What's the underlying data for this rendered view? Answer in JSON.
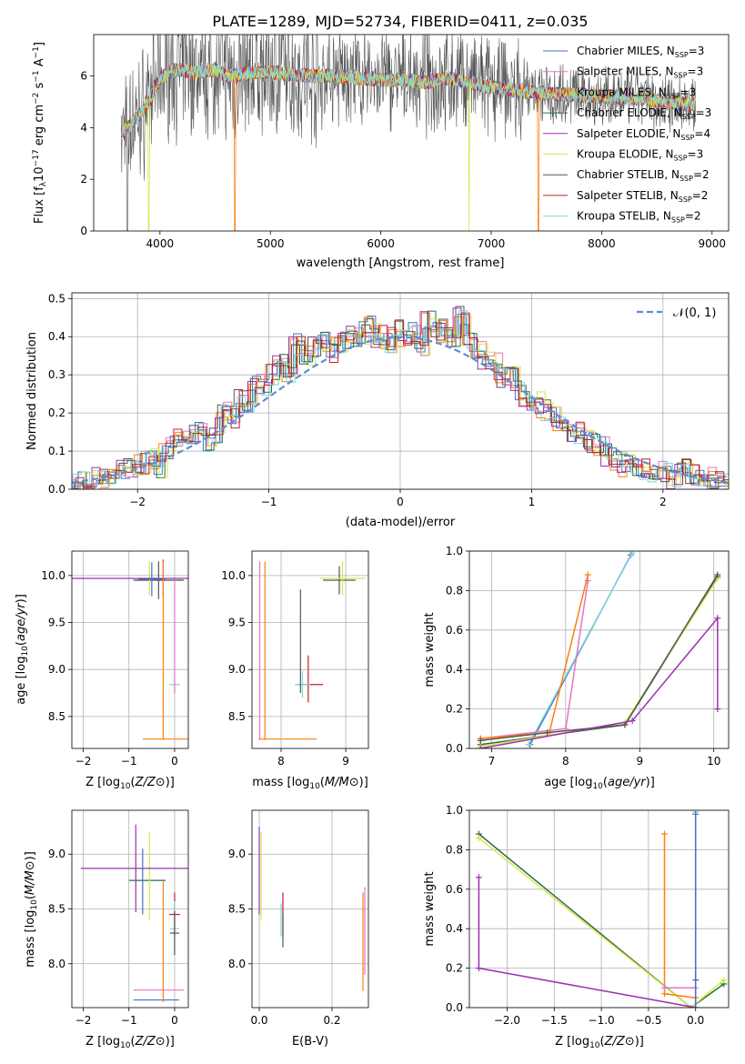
{
  "figure_title": "PLATE=1289, MJD=52734, FIBERID=0411, z=0.035",
  "models": [
    {
      "label": "Chabrier MILES, N",
      "nssp": "3",
      "color": "#4472c4"
    },
    {
      "label": "Salpeter MILES, N",
      "nssp": "3",
      "color": "#e377c2"
    },
    {
      "label": "Kroupa MILES, N",
      "nssp": "3",
      "color": "#ff7f0e"
    },
    {
      "label": "Chabrier ELODIE, N",
      "nssp": "3",
      "color": "#2f6b45"
    },
    {
      "label": "Salpeter ELODIE, N",
      "nssp": "4",
      "color": "#9b30b3"
    },
    {
      "label": "Kroupa ELODIE, N",
      "nssp": "3",
      "color": "#d4e84a"
    },
    {
      "label": "Chabrier STELIB, N",
      "nssp": "2",
      "color": "#555555"
    },
    {
      "label": "Salpeter STELIB, N",
      "nssp": "2",
      "color": "#c0202b"
    },
    {
      "label": "Kroupa STELIB, N",
      "nssp": "2",
      "color": "#7fd6dc"
    }
  ],
  "nssp_sub": "SSP",
  "chart_data": [
    {
      "id": "spectrum",
      "type": "line",
      "xlabel": "wavelength [Angstrom, rest frame]",
      "ylabel_parts": [
        "Flux [f",
        "λ",
        "10",
        "−17",
        " erg cm",
        "−2",
        " s",
        "−1",
        " A",
        "−1",
        "]"
      ],
      "xlim": [
        3400,
        9150
      ],
      "ylim": [
        0,
        7.6
      ],
      "xticks": [
        4000,
        5000,
        6000,
        7000,
        8000,
        9000
      ],
      "yticks": [
        0,
        2,
        4,
        6
      ],
      "grid": false,
      "legend_placement": "upper right",
      "continuum": {
        "x": [
          3650,
          3700,
          3800,
          3900,
          4000,
          4100,
          4200,
          4300,
          4400,
          4500,
          4600,
          4800,
          5000,
          5200,
          5400,
          5600,
          5800,
          6000,
          6200,
          6400,
          6600,
          6800,
          7000,
          7200,
          7400,
          7600,
          7800,
          8000,
          8200,
          8400,
          8600,
          8800
        ],
        "y": [
          3.8,
          4.0,
          4.4,
          5.0,
          5.9,
          6.2,
          6.25,
          6.1,
          6.2,
          6.25,
          6.0,
          6.1,
          6.15,
          6.05,
          6.0,
          6.0,
          5.9,
          5.85,
          5.85,
          5.75,
          5.9,
          5.75,
          5.55,
          5.45,
          5.35,
          5.3,
          5.25,
          5.2,
          5.15,
          5.1,
          5.0,
          4.9
        ]
      },
      "dropouts": [
        {
          "x": 3705,
          "series": 6
        },
        {
          "x": 3900,
          "series": 5
        },
        {
          "x": 4680,
          "series": 2
        },
        {
          "x": 6800,
          "series": 5
        },
        {
          "x": 7425,
          "series": 2
        }
      ]
    },
    {
      "id": "residual_hist",
      "type": "histogram",
      "xlabel": "(data-model)/error",
      "ylabel": "Normed distribution",
      "xlim": [
        -2.5,
        2.5
      ],
      "ylim": [
        0,
        0.515
      ],
      "xticks": [
        -2,
        -1,
        0,
        1,
        2
      ],
      "yticks": [
        0,
        0.1,
        0.2,
        0.3,
        0.4,
        0.5
      ],
      "grid": true,
      "legend": [
        {
          "label": "𝒩(0, 1)",
          "style": "dashed",
          "color": "#5b8cd6"
        }
      ],
      "legend_placement": "upper right",
      "bin_width": 0.1,
      "reference_curve": "normal pdf, mean 0, sigma 1",
      "hist_values": [
        0.01,
        0.02,
        0.02,
        0.03,
        0.04,
        0.04,
        0.05,
        0.06,
        0.07,
        0.08,
        0.06,
        0.11,
        0.14,
        0.15,
        0.14,
        0.17,
        0.13,
        0.15,
        0.21,
        0.19,
        0.24,
        0.23,
        0.28,
        0.27,
        0.3,
        0.33,
        0.31,
        0.38,
        0.35,
        0.37,
        0.39,
        0.36,
        0.38,
        0.39,
        0.4,
        0.41,
        0.43,
        0.4,
        0.38,
        0.42,
        0.4,
        0.41,
        0.38,
        0.44,
        0.41,
        0.42,
        0.38,
        0.45,
        0.39,
        0.36,
        0.34,
        0.33,
        0.29,
        0.3,
        0.26,
        0.24,
        0.23,
        0.21,
        0.2,
        0.18,
        0.15,
        0.15,
        0.14,
        0.12,
        0.11,
        0.09,
        0.08,
        0.06,
        0.06,
        0.05,
        0.04,
        0.05,
        0.04,
        0.03,
        0.05,
        0.04,
        0.03,
        0.03,
        0.02,
        0.02
      ],
      "hist_first_left": -2.5
    },
    {
      "id": "age_vs_Z",
      "type": "errorbar",
      "xlabel": "Z [log10(Z/Z⊙)]",
      "ylabel": "age  [log10(age/yr)]",
      "xlim": [
        -2.25,
        0.3
      ],
      "ylim": [
        8.16,
        10.26
      ],
      "xticks": [
        -2,
        -1,
        0
      ],
      "yticks": [
        8.5,
        9.0,
        9.5,
        10.0
      ],
      "grid": true,
      "points": [
        {
          "x": -0.35,
          "y": 9.95,
          "xerr": 0.55,
          "yerr": 0.2,
          "series": 6
        },
        {
          "x": -0.55,
          "y": 9.97,
          "xerr": 0.2,
          "yerr": 0.18,
          "series": 5
        },
        {
          "x": -0.25,
          "y": 9.97,
          "xerr": 2.0,
          "yerr": 0.2,
          "series": 4
        },
        {
          "x": -0.5,
          "y": 9.96,
          "xerr": 0.3,
          "yerr": 0.18,
          "series": 0
        },
        {
          "x": -0.2,
          "y": 8.26,
          "xerr": 0.5,
          "yerr": 0.0,
          "series": 2
        },
        {
          "x": -0.25,
          "y": 9.2,
          "xerr": 0.0,
          "yerr": 0.95,
          "series": 2
        },
        {
          "x": 0.0,
          "y": 8.84,
          "xerr": 0.12,
          "yerr": 0.1,
          "series": 8
        },
        {
          "x": 0.0,
          "y": 9.35,
          "xerr": 0.0,
          "yerr": 0.6,
          "series": 1
        }
      ]
    },
    {
      "id": "age_vs_mass",
      "type": "errorbar",
      "xlabel": "mass [log10(M/M⊙)]",
      "ylabel": "",
      "xlim": [
        7.55,
        9.35
      ],
      "ylim": [
        8.16,
        10.26
      ],
      "xticks": [
        8,
        9
      ],
      "yticks": [
        8.5,
        9.0,
        9.5,
        10.0
      ],
      "grid": true,
      "points": [
        {
          "x": 8.9,
          "y": 9.95,
          "xerr": 0.25,
          "yerr": 0.15,
          "series": 6
        },
        {
          "x": 8.95,
          "y": 9.97,
          "xerr": 0.35,
          "yerr": 0.18,
          "series": 5
        },
        {
          "x": 7.67,
          "y": 9.2,
          "xerr": 0.0,
          "yerr": 0.95,
          "series": 1
        },
        {
          "x": 7.75,
          "y": 9.2,
          "xerr": 0.0,
          "yerr": 0.95,
          "series": 2
        },
        {
          "x": 8.1,
          "y": 8.26,
          "xerr": 0.45,
          "yerr": 0.0,
          "series": 2
        },
        {
          "x": 8.45,
          "y": 8.84,
          "xerr": 0.2,
          "yerr": 0.0,
          "series": 7
        },
        {
          "x": 8.42,
          "y": 8.9,
          "xerr": 0.0,
          "yerr": 0.25,
          "series": 7
        },
        {
          "x": 8.33,
          "y": 8.84,
          "xerr": 0.12,
          "yerr": 0.14,
          "series": 8
        },
        {
          "x": 8.3,
          "y": 9.3,
          "xerr": 0.0,
          "yerr": 0.55,
          "series": 6
        }
      ]
    },
    {
      "id": "weight_vs_age",
      "type": "line",
      "xlabel": "age  [log10(age/yr)]",
      "ylabel": "mass weight",
      "xlim": [
        6.7,
        10.2
      ],
      "ylim": [
        0,
        1
      ],
      "xticks": [
        7,
        8,
        9,
        10
      ],
      "yticks": [
        0.0,
        0.2,
        0.4,
        0.6,
        0.8,
        1.0
      ],
      "grid": true,
      "series_points": [
        {
          "series": 0,
          "x": [
            7.52,
            8.88
          ],
          "y": [
            0.02,
            0.98
          ]
        },
        {
          "series": 8,
          "x": [
            7.5,
            8.9
          ],
          "y": [
            0.02,
            0.99
          ]
        },
        {
          "series": 1,
          "x": [
            6.85,
            8.0,
            8.3
          ],
          "y": [
            0.05,
            0.1,
            0.85
          ]
        },
        {
          "series": 2,
          "x": [
            6.85,
            7.78,
            8.3
          ],
          "y": [
            0.05,
            0.08,
            0.88
          ]
        },
        {
          "series": 3,
          "x": [
            6.85,
            8.8,
            10.05
          ],
          "y": [
            0.02,
            0.12,
            0.87
          ]
        },
        {
          "series": 5,
          "x": [
            6.85,
            8.8,
            10.05
          ],
          "y": [
            0.01,
            0.13,
            0.86
          ]
        },
        {
          "series": 6,
          "x": [
            6.85,
            7.75,
            8.8,
            10.05
          ],
          "y": [
            0.04,
            0.08,
            0.12,
            0.88
          ]
        },
        {
          "series": 4,
          "x": [
            6.85,
            8.9,
            10.05,
            10.05
          ],
          "y": [
            0.0,
            0.14,
            0.66,
            0.2
          ]
        }
      ]
    },
    {
      "id": "mass_vs_Z",
      "type": "errorbar",
      "xlabel": "Z [log10(Z/Z⊙)]",
      "ylabel": "mass [log10(M/M⊙)]",
      "xlim": [
        -2.25,
        0.3
      ],
      "ylim": [
        7.6,
        9.4
      ],
      "xticks": [
        -2,
        -1,
        0
      ],
      "yticks": [
        8.0,
        8.5,
        9.0
      ],
      "grid": true,
      "points": [
        {
          "x": -0.6,
          "y": 8.76,
          "xerr": 0.4,
          "yerr": 0.0,
          "series": 3
        },
        {
          "x": -0.55,
          "y": 8.8,
          "xerr": 0.0,
          "yerr": 0.4,
          "series": 5
        },
        {
          "x": -0.85,
          "y": 8.87,
          "xerr": 1.2,
          "yerr": 0.4,
          "series": 4
        },
        {
          "x": -0.7,
          "y": 8.75,
          "xerr": 0.0,
          "yerr": 0.3,
          "series": 0
        },
        {
          "x": -0.35,
          "y": 7.76,
          "xerr": 0.55,
          "yerr": 0.0,
          "series": 1
        },
        {
          "x": -0.4,
          "y": 7.67,
          "xerr": 0.5,
          "yerr": 0.0,
          "series": 0
        },
        {
          "x": -0.25,
          "y": 8.2,
          "xerr": 0.0,
          "yerr": 0.55,
          "series": 2
        },
        {
          "x": 0.0,
          "y": 8.45,
          "xerr": 0.12,
          "yerr": 0.2,
          "series": 7
        },
        {
          "x": 0.0,
          "y": 8.32,
          "xerr": 0.1,
          "yerr": 0.25,
          "series": 8
        },
        {
          "x": 0.0,
          "y": 8.28,
          "xerr": 0.1,
          "yerr": 0.2,
          "series": 6
        }
      ]
    },
    {
      "id": "mass_vs_ebv",
      "type": "errorbar",
      "xlabel": "E(B-V)",
      "ylabel": "",
      "xlim": [
        -0.02,
        0.3
      ],
      "ylim": [
        7.6,
        9.4
      ],
      "xticks": [
        0.0,
        0.2
      ],
      "yticks": [
        8.0,
        8.5,
        9.0
      ],
      "grid": true,
      "points": [
        {
          "x": 0.0,
          "y": 8.85,
          "xerr": 0.0,
          "yerr": 0.4,
          "series": 4
        },
        {
          "x": 0.005,
          "y": 8.8,
          "xerr": 0.0,
          "yerr": 0.4,
          "series": 5
        },
        {
          "x": 0.06,
          "y": 8.4,
          "xerr": 0.0,
          "yerr": 0.15,
          "series": 8
        },
        {
          "x": 0.065,
          "y": 8.45,
          "xerr": 0.0,
          "yerr": 0.2,
          "series": 7
        },
        {
          "x": 0.065,
          "y": 8.3,
          "xerr": 0.0,
          "yerr": 0.15,
          "series": 6
        },
        {
          "x": 0.285,
          "y": 8.2,
          "xerr": 0.0,
          "yerr": 0.45,
          "series": 2
        },
        {
          "x": 0.29,
          "y": 8.3,
          "xerr": 0.0,
          "yerr": 0.4,
          "series": 1
        }
      ]
    },
    {
      "id": "weight_vs_Z",
      "type": "line",
      "xlabel": "Z [log10(Z/Z⊙)]",
      "ylabel": "mass weight",
      "xlim": [
        -2.4,
        0.35
      ],
      "ylim": [
        0,
        1
      ],
      "xticks": [
        -2.0,
        -1.5,
        -1.0,
        -0.5,
        0.0
      ],
      "yticks": [
        0.0,
        0.2,
        0.4,
        0.6,
        0.8,
        1.0
      ],
      "grid": true,
      "series_points": [
        {
          "series": 3,
          "x": [
            -2.3,
            -0.05,
            0.3
          ],
          "y": [
            0.88,
            0.0,
            0.12
          ]
        },
        {
          "series": 5,
          "x": [
            -2.3,
            -0.05,
            0.3
          ],
          "y": [
            0.86,
            0.0,
            0.14
          ]
        },
        {
          "series": 4,
          "x": [
            -2.3,
            -2.3,
            0.0,
            0.0
          ],
          "y": [
            0.66,
            0.2,
            0.0,
            0.14
          ]
        },
        {
          "series": 2,
          "x": [
            -0.33,
            -0.33,
            0.0
          ],
          "y": [
            0.88,
            0.07,
            0.05
          ]
        },
        {
          "series": 1,
          "x": [
            -0.33,
            0.0
          ],
          "y": [
            0.1,
            0.1
          ]
        },
        {
          "series": 8,
          "x": [
            0.0,
            0.0
          ],
          "y": [
            0.0,
            0.99
          ]
        },
        {
          "series": 0,
          "x": [
            0.0,
            0.0
          ],
          "y": [
            0.0,
            0.98
          ]
        }
      ]
    }
  ]
}
